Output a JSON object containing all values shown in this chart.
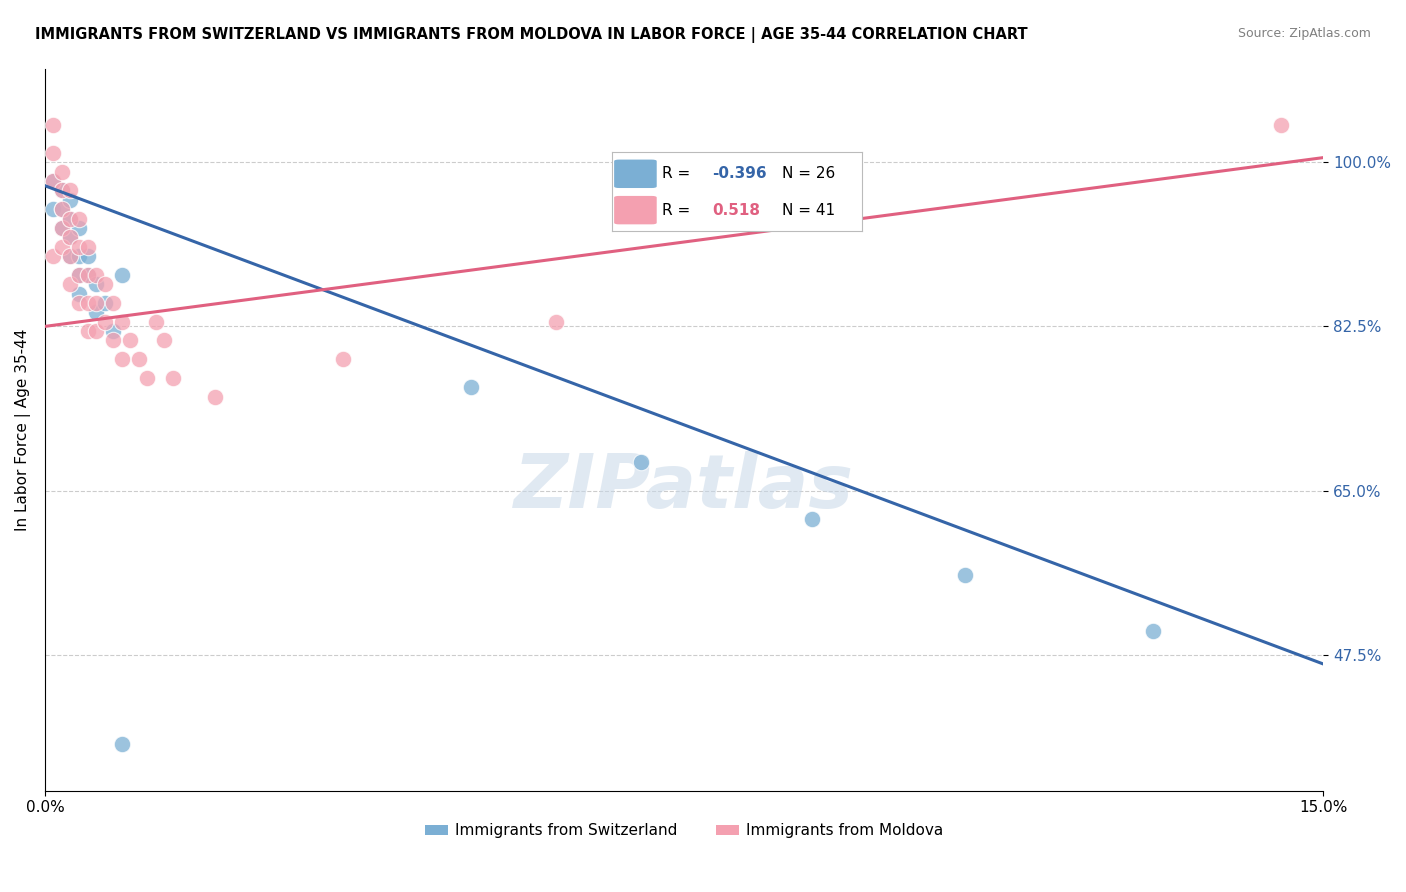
{
  "title": "IMMIGRANTS FROM SWITZERLAND VS IMMIGRANTS FROM MOLDOVA IN LABOR FORCE | AGE 35-44 CORRELATION CHART",
  "source": "Source: ZipAtlas.com",
  "xlabel_label": "Immigrants from Switzerland",
  "ylabel_label": "In Labor Force | Age 35-44",
  "xlabel2_label": "Immigrants from Moldova",
  "xlim": [
    0.0,
    0.15
  ],
  "ylim": [
    0.33,
    1.1
  ],
  "yticks": [
    0.475,
    0.65,
    0.825,
    1.0
  ],
  "ytick_labels": [
    "47.5%",
    "65.0%",
    "82.5%",
    "100.0%"
  ],
  "xticks": [
    0.0,
    0.15
  ],
  "xtick_labels": [
    "0.0%",
    "15.0%"
  ],
  "grid_color": "#cccccc",
  "bg_color": "#ffffff",
  "switzerland_color": "#7bafd4",
  "moldova_color": "#f4a0b0",
  "switzerland_line_color": "#3565a8",
  "moldova_line_color": "#e06080",
  "switzerland_R": -0.396,
  "switzerland_N": 26,
  "moldova_R": 0.518,
  "moldova_N": 41,
  "watermark": "ZIPatlas",
  "switzerland_x": [
    0.001,
    0.001,
    0.002,
    0.002,
    0.002,
    0.003,
    0.003,
    0.003,
    0.003,
    0.004,
    0.004,
    0.004,
    0.004,
    0.005,
    0.005,
    0.006,
    0.006,
    0.007,
    0.008,
    0.009,
    0.009,
    0.05,
    0.07,
    0.09,
    0.108,
    0.13
  ],
  "switzerland_y": [
    0.98,
    0.95,
    0.97,
    0.95,
    0.93,
    0.96,
    0.94,
    0.92,
    0.9,
    0.93,
    0.9,
    0.88,
    0.86,
    0.9,
    0.88,
    0.87,
    0.84,
    0.85,
    0.82,
    0.88,
    0.38,
    0.76,
    0.68,
    0.62,
    0.56,
    0.5
  ],
  "moldova_x": [
    0.001,
    0.001,
    0.001,
    0.001,
    0.002,
    0.002,
    0.002,
    0.002,
    0.002,
    0.003,
    0.003,
    0.003,
    0.003,
    0.003,
    0.004,
    0.004,
    0.004,
    0.004,
    0.005,
    0.005,
    0.005,
    0.005,
    0.006,
    0.006,
    0.006,
    0.007,
    0.007,
    0.008,
    0.008,
    0.009,
    0.009,
    0.01,
    0.011,
    0.012,
    0.013,
    0.014,
    0.015,
    0.02,
    0.035,
    0.06,
    0.145
  ],
  "moldova_y": [
    1.04,
    1.01,
    0.98,
    0.9,
    0.99,
    0.97,
    0.95,
    0.93,
    0.91,
    0.97,
    0.94,
    0.92,
    0.9,
    0.87,
    0.94,
    0.91,
    0.88,
    0.85,
    0.91,
    0.88,
    0.85,
    0.82,
    0.88,
    0.85,
    0.82,
    0.87,
    0.83,
    0.85,
    0.81,
    0.83,
    0.79,
    0.81,
    0.79,
    0.77,
    0.83,
    0.81,
    0.77,
    0.75,
    0.79,
    0.83,
    1.04
  ],
  "switz_line_x0": 0.0,
  "switz_line_x1": 0.15,
  "switz_line_y0": 0.975,
  "switz_line_y1": 0.465,
  "mold_line_x0": 0.0,
  "mold_line_x1": 0.15,
  "mold_line_y0": 0.825,
  "mold_line_y1": 1.005
}
